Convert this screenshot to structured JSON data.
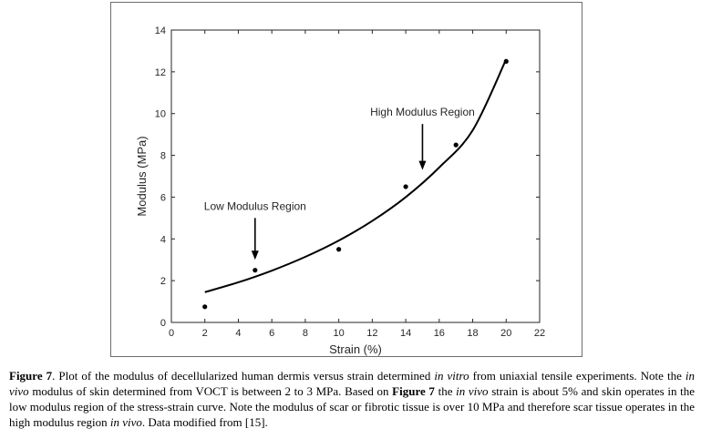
{
  "chart_data": {
    "type": "scatter",
    "xlabel": "Strain (%)",
    "ylabel": "Modulus (MPa)",
    "xlim": [
      0,
      22
    ],
    "ylim": [
      0,
      14
    ],
    "x_ticks": [
      "0",
      "2",
      "4",
      "6",
      "8",
      "10",
      "12",
      "14",
      "16",
      "18",
      "20",
      "22"
    ],
    "y_ticks": [
      "0",
      "2",
      "4",
      "6",
      "8",
      "10",
      "12",
      "14"
    ],
    "points": [
      {
        "x": 2,
        "y": 0.75
      },
      {
        "x": 5,
        "y": 2.5
      },
      {
        "x": 10,
        "y": 3.5
      },
      {
        "x": 14,
        "y": 6.5
      },
      {
        "x": 17,
        "y": 8.5
      },
      {
        "x": 20,
        "y": 12.5
      }
    ],
    "fit_curve": [
      {
        "x": 2,
        "y": 1.45
      },
      {
        "x": 4,
        "y": 1.92
      },
      {
        "x": 6,
        "y": 2.48
      },
      {
        "x": 8,
        "y": 3.14
      },
      {
        "x": 10,
        "y": 3.92
      },
      {
        "x": 12,
        "y": 4.86
      },
      {
        "x": 14,
        "y": 6.0
      },
      {
        "x": 16,
        "y": 7.42
      },
      {
        "x": 18,
        "y": 9.2
      },
      {
        "x": 20,
        "y": 12.6
      }
    ],
    "annotations": [
      {
        "text": "Low Modulus Region",
        "arrow_x": 5,
        "arrow_from_y": 5.0,
        "arrow_to_y": 3.0
      },
      {
        "text": "High Modulus Region",
        "arrow_x": 15,
        "arrow_from_y": 9.5,
        "arrow_to_y": 7.3
      }
    ],
    "grid": false,
    "colors": {
      "axis": "#262626",
      "curve": "#000000",
      "points": "#000000"
    }
  },
  "caption": {
    "figure_label": "Figure 7",
    "part1": ". Plot of the modulus of decellularized human dermis versus strain determined ",
    "in_vitro": "in vitro",
    "part2": " from uniaxial tensile experiments. Note the ",
    "in_vivo_1": "in vivo",
    "part3": " modulus of skin determined from VOCT is between 2 to 3 MPa. Based on ",
    "figure_ref": "Figure 7",
    "part4": " the ",
    "in_vivo_2": "in vivo",
    "part5": " strain is about 5% and skin operates in the low modulus region of the stress-strain curve. Note the modulus of scar or fibrotic tissue is over 10 MPa and therefore scar tissue operates in the high modulus region ",
    "in_vivo_3": "in vivo",
    "part6": ". Data modified from [15]."
  }
}
